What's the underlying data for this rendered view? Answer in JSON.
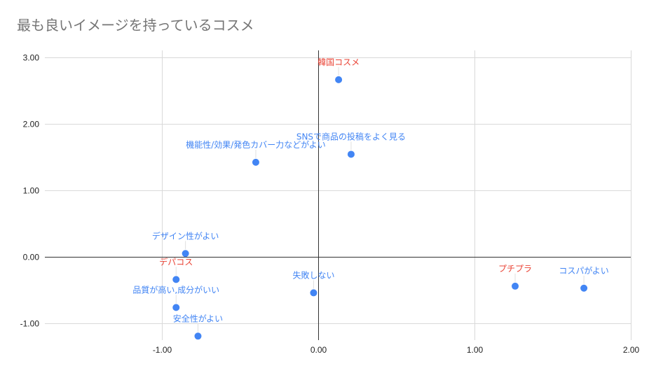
{
  "chart_data": {
    "type": "scatter",
    "title": "最も良いイメージを持っているコスメ",
    "xlabel": "",
    "ylabel": "",
    "xlim": [
      -1.75,
      2.0
    ],
    "ylim": [
      -1.25,
      3.1
    ],
    "xticks": [
      -1.0,
      0.0,
      1.0,
      2.0
    ],
    "yticks": [
      -1.0,
      0.0,
      1.0,
      2.0,
      3.0
    ],
    "xtick_labels": [
      "-1.00",
      "0.00",
      "1.00",
      "2.00"
    ],
    "ytick_labels": [
      "-1.00",
      "0.00",
      "1.00",
      "2.00",
      "3.00"
    ],
    "grid": true,
    "marker_color": "#4285f4",
    "label_colors": {
      "blue": "#4285f4",
      "red": "#ea4335"
    },
    "points": [
      {
        "label": "韓国コスメ",
        "x": 0.13,
        "y": 2.66,
        "label_color": "red"
      },
      {
        "label": "SNSで商品の投稿をよく見る",
        "x": 0.21,
        "y": 1.54,
        "label_color": "blue"
      },
      {
        "label": "機能性/効果/発色カバー力などがよい",
        "x": -0.4,
        "y": 1.42,
        "label_color": "blue"
      },
      {
        "label": "デザイン性がよい",
        "x": -0.85,
        "y": 0.05,
        "label_color": "blue"
      },
      {
        "label": "デパコス",
        "x": -0.91,
        "y": -0.34,
        "label_color": "red"
      },
      {
        "label": "品質が高い,成分がいい",
        "x": -0.91,
        "y": -0.76,
        "label_color": "blue"
      },
      {
        "label": "安全性がよい",
        "x": -0.77,
        "y": -1.19,
        "label_color": "blue"
      },
      {
        "label": "失敗しない",
        "x": -0.03,
        "y": -0.54,
        "label_color": "blue"
      },
      {
        "label": "プチプラ",
        "x": 1.26,
        "y": -0.44,
        "label_color": "red"
      },
      {
        "label": "コスパがよい",
        "x": 1.7,
        "y": -0.47,
        "label_color": "blue"
      }
    ]
  }
}
